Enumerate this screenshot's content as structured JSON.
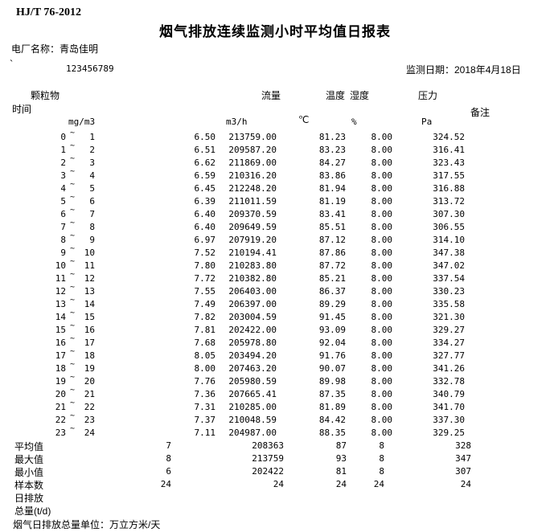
{
  "header": {
    "standard": "HJ/T 76-2012",
    "title": "烟气排放连续监测小时平均值日报表",
    "plant_name_label": "电厂名称：青岛佳明",
    "mark": "`",
    "plant_code": "123456789",
    "monitor_date_label": "监测日期：2018年4月18日"
  },
  "table": {
    "column_groups": {
      "pm": "颗粒物",
      "flow": "流量",
      "temp": "温度",
      "humidity": "湿度",
      "pressure": "压力"
    },
    "row_header": "时间",
    "note_header": "备注",
    "units": {
      "pm": "mg/m3",
      "flow": "m3/h",
      "temp": "℃",
      "humidity": "%",
      "pressure": "Pa"
    },
    "tilde_char": "~",
    "rows": [
      {
        "h1": "0",
        "h2": "1",
        "pm": "6.50",
        "flow": "213759.00",
        "temp": "81.23",
        "hum": "8.00",
        "press": "324.52"
      },
      {
        "h1": "1",
        "h2": "2",
        "pm": "6.51",
        "flow": "209587.20",
        "temp": "83.23",
        "hum": "8.00",
        "press": "316.41"
      },
      {
        "h1": "2",
        "h2": "3",
        "pm": "6.62",
        "flow": "211869.00",
        "temp": "84.27",
        "hum": "8.00",
        "press": "323.43"
      },
      {
        "h1": "3",
        "h2": "4",
        "pm": "6.59",
        "flow": "210316.20",
        "temp": "83.86",
        "hum": "8.00",
        "press": "317.55"
      },
      {
        "h1": "4",
        "h2": "5",
        "pm": "6.45",
        "flow": "212248.20",
        "temp": "81.94",
        "hum": "8.00",
        "press": "316.88"
      },
      {
        "h1": "5",
        "h2": "6",
        "pm": "6.39",
        "flow": "211011.59",
        "temp": "81.19",
        "hum": "8.00",
        "press": "313.72"
      },
      {
        "h1": "6",
        "h2": "7",
        "pm": "6.40",
        "flow": "209370.59",
        "temp": "83.41",
        "hum": "8.00",
        "press": "307.30"
      },
      {
        "h1": "7",
        "h2": "8",
        "pm": "6.40",
        "flow": "209649.59",
        "temp": "85.51",
        "hum": "8.00",
        "press": "306.55"
      },
      {
        "h1": "8",
        "h2": "9",
        "pm": "6.97",
        "flow": "207919.20",
        "temp": "87.12",
        "hum": "8.00",
        "press": "314.10"
      },
      {
        "h1": "9",
        "h2": "10",
        "pm": "7.52",
        "flow": "210194.41",
        "temp": "87.86",
        "hum": "8.00",
        "press": "347.38"
      },
      {
        "h1": "10",
        "h2": "11",
        "pm": "7.80",
        "flow": "210283.80",
        "temp": "87.72",
        "hum": "8.00",
        "press": "347.02"
      },
      {
        "h1": "11",
        "h2": "12",
        "pm": "7.72",
        "flow": "210382.80",
        "temp": "85.21",
        "hum": "8.00",
        "press": "337.54"
      },
      {
        "h1": "12",
        "h2": "13",
        "pm": "7.55",
        "flow": "206403.00",
        "temp": "86.37",
        "hum": "8.00",
        "press": "330.23"
      },
      {
        "h1": "13",
        "h2": "14",
        "pm": "7.49",
        "flow": "206397.00",
        "temp": "89.29",
        "hum": "8.00",
        "press": "335.58"
      },
      {
        "h1": "14",
        "h2": "15",
        "pm": "7.82",
        "flow": "203004.59",
        "temp": "91.45",
        "hum": "8.00",
        "press": "321.30"
      },
      {
        "h1": "15",
        "h2": "16",
        "pm": "7.81",
        "flow": "202422.00",
        "temp": "93.09",
        "hum": "8.00",
        "press": "329.27"
      },
      {
        "h1": "16",
        "h2": "17",
        "pm": "7.68",
        "flow": "205978.80",
        "temp": "92.04",
        "hum": "8.00",
        "press": "334.27"
      },
      {
        "h1": "17",
        "h2": "18",
        "pm": "8.05",
        "flow": "203494.20",
        "temp": "91.76",
        "hum": "8.00",
        "press": "327.77"
      },
      {
        "h1": "18",
        "h2": "19",
        "pm": "8.00",
        "flow": "207463.20",
        "temp": "90.07",
        "hum": "8.00",
        "press": "341.26"
      },
      {
        "h1": "19",
        "h2": "20",
        "pm": "7.76",
        "flow": "205980.59",
        "temp": "89.98",
        "hum": "8.00",
        "press": "332.78"
      },
      {
        "h1": "20",
        "h2": "21",
        "pm": "7.36",
        "flow": "207665.41",
        "temp": "87.35",
        "hum": "8.00",
        "press": "340.79"
      },
      {
        "h1": "21",
        "h2": "22",
        "pm": "7.31",
        "flow": "210285.00",
        "temp": "81.89",
        "hum": "8.00",
        "press": "341.70"
      },
      {
        "h1": "22",
        "h2": "23",
        "pm": "7.37",
        "flow": "210048.59",
        "temp": "84.42",
        "hum": "8.00",
        "press": "337.30"
      },
      {
        "h1": "23",
        "h2": "24",
        "pm": "7.11",
        "flow": "204987.00",
        "temp": "88.35",
        "hum": "8.00",
        "press": "329.25"
      }
    ],
    "summary": [
      {
        "label": "平均值",
        "values": [
          "7",
          "208363",
          "87",
          "8",
          "328"
        ]
      },
      {
        "label": "最大值",
        "values": [
          "8",
          "213759",
          "93",
          "8",
          "347"
        ]
      },
      {
        "label": "最小值",
        "values": [
          "6",
          "202422",
          "81",
          "8",
          "307"
        ]
      },
      {
        "label": "样本数",
        "values": [
          "24",
          "24",
          "24",
          "24",
          "24"
        ]
      },
      {
        "label": "日排放",
        "values": [
          "",
          "",
          "",
          "",
          ""
        ]
      },
      {
        "label": "总量(t/d)",
        "values": [
          "",
          "",
          "",
          "",
          ""
        ]
      }
    ]
  },
  "footer": {
    "unit_note": "烟气日排放总量单位：万立方米/天"
  }
}
